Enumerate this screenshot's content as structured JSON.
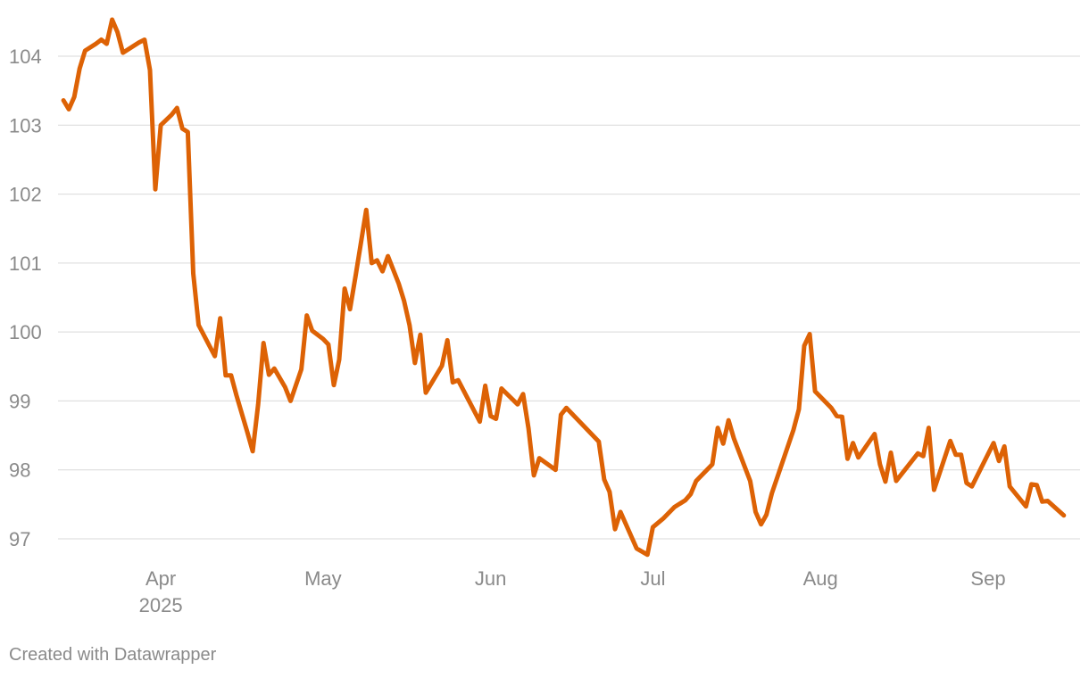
{
  "chart_data": {
    "type": "line",
    "title": "",
    "xlabel": "",
    "ylabel": "",
    "ylim": [
      96.7,
      104.6
    ],
    "xlim": [
      "2025-03-13",
      "2025-09-18"
    ],
    "grid": true,
    "y_ticks": [
      97,
      98,
      99,
      100,
      101,
      102,
      103,
      104
    ],
    "x_ticks": [
      {
        "date": "2025-04-01",
        "label": "Apr",
        "sublabel": "2025"
      },
      {
        "date": "2025-05-01",
        "label": "May"
      },
      {
        "date": "2025-06-01",
        "label": "Jun"
      },
      {
        "date": "2025-07-01",
        "label": "Jul"
      },
      {
        "date": "2025-08-01",
        "label": "Aug"
      },
      {
        "date": "2025-09-01",
        "label": "Sep"
      }
    ],
    "series": [
      {
        "color": "#dd6205",
        "points": [
          [
            "2025-03-14",
            103.36
          ],
          [
            "2025-03-15",
            103.23
          ],
          [
            "2025-03-16",
            103.41
          ],
          [
            "2025-03-17",
            103.82
          ],
          [
            "2025-03-18",
            104.08
          ],
          [
            "2025-03-20",
            104.18
          ],
          [
            "2025-03-21",
            104.24
          ],
          [
            "2025-03-22",
            104.18
          ],
          [
            "2025-03-23",
            104.53
          ],
          [
            "2025-03-24",
            104.35
          ],
          [
            "2025-03-25",
            104.05
          ],
          [
            "2025-03-27",
            104.15
          ],
          [
            "2025-03-28",
            104.2
          ],
          [
            "2025-03-29",
            104.24
          ],
          [
            "2025-03-30",
            103.8
          ],
          [
            "2025-03-31",
            102.07
          ],
          [
            "2025-04-01",
            103.0
          ],
          [
            "2025-04-03",
            103.15
          ],
          [
            "2025-04-04",
            103.25
          ],
          [
            "2025-04-05",
            102.95
          ],
          [
            "2025-04-06",
            102.9
          ],
          [
            "2025-04-07",
            100.85
          ],
          [
            "2025-04-08",
            100.1
          ],
          [
            "2025-04-10",
            99.8
          ],
          [
            "2025-04-11",
            99.65
          ],
          [
            "2025-04-12",
            100.2
          ],
          [
            "2025-04-13",
            99.37
          ],
          [
            "2025-04-14",
            99.37
          ],
          [
            "2025-04-15",
            99.08
          ],
          [
            "2025-04-17",
            98.55
          ],
          [
            "2025-04-18",
            98.27
          ],
          [
            "2025-04-19",
            98.95
          ],
          [
            "2025-04-20",
            99.84
          ],
          [
            "2025-04-21",
            99.38
          ],
          [
            "2025-04-22",
            99.47
          ],
          [
            "2025-04-24",
            99.2
          ],
          [
            "2025-04-25",
            99.0
          ],
          [
            "2025-04-27",
            99.46
          ],
          [
            "2025-04-28",
            100.24
          ],
          [
            "2025-04-29",
            100.02
          ],
          [
            "2025-05-01",
            99.9
          ],
          [
            "2025-05-02",
            99.82
          ],
          [
            "2025-05-03",
            99.23
          ],
          [
            "2025-05-04",
            99.6
          ],
          [
            "2025-05-05",
            100.63
          ],
          [
            "2025-05-06",
            100.33
          ],
          [
            "2025-05-07",
            100.8
          ],
          [
            "2025-05-09",
            101.77
          ],
          [
            "2025-05-10",
            101.0
          ],
          [
            "2025-05-11",
            101.04
          ],
          [
            "2025-05-12",
            100.88
          ],
          [
            "2025-05-13",
            101.1
          ],
          [
            "2025-05-15",
            100.7
          ],
          [
            "2025-05-16",
            100.45
          ],
          [
            "2025-05-17",
            100.1
          ],
          [
            "2025-05-18",
            99.55
          ],
          [
            "2025-05-19",
            99.96
          ],
          [
            "2025-05-20",
            99.12
          ],
          [
            "2025-05-23",
            99.51
          ],
          [
            "2025-05-24",
            99.88
          ],
          [
            "2025-05-25",
            99.27
          ],
          [
            "2025-05-26",
            99.3
          ],
          [
            "2025-05-30",
            98.7
          ],
          [
            "2025-05-31",
            99.22
          ],
          [
            "2025-06-01",
            98.78
          ],
          [
            "2025-06-02",
            98.74
          ],
          [
            "2025-06-03",
            99.18
          ],
          [
            "2025-06-06",
            98.95
          ],
          [
            "2025-06-07",
            99.1
          ],
          [
            "2025-06-08",
            98.6
          ],
          [
            "2025-06-09",
            97.92
          ],
          [
            "2025-06-10",
            98.17
          ],
          [
            "2025-06-13",
            98.0
          ],
          [
            "2025-06-14",
            98.8
          ],
          [
            "2025-06-15",
            98.9
          ],
          [
            "2025-06-21",
            98.41
          ],
          [
            "2025-06-22",
            97.86
          ],
          [
            "2025-06-23",
            97.68
          ],
          [
            "2025-06-24",
            97.14
          ],
          [
            "2025-06-25",
            97.39
          ],
          [
            "2025-06-28",
            96.86
          ],
          [
            "2025-06-30",
            96.77
          ],
          [
            "2025-07-01",
            97.17
          ],
          [
            "2025-07-03",
            97.3
          ],
          [
            "2025-07-05",
            97.46
          ],
          [
            "2025-07-07",
            97.56
          ],
          [
            "2025-07-08",
            97.65
          ],
          [
            "2025-07-09",
            97.84
          ],
          [
            "2025-07-12",
            98.08
          ],
          [
            "2025-07-13",
            98.61
          ],
          [
            "2025-07-14",
            98.38
          ],
          [
            "2025-07-15",
            98.72
          ],
          [
            "2025-07-16",
            98.45
          ],
          [
            "2025-07-19",
            97.84
          ],
          [
            "2025-07-20",
            97.39
          ],
          [
            "2025-07-21",
            97.21
          ],
          [
            "2025-07-22",
            97.35
          ],
          [
            "2025-07-23",
            97.66
          ],
          [
            "2025-07-27",
            98.58
          ],
          [
            "2025-07-28",
            98.88
          ],
          [
            "2025-07-29",
            99.8
          ],
          [
            "2025-07-30",
            99.97
          ],
          [
            "2025-07-31",
            99.14
          ],
          [
            "2025-08-03",
            98.9
          ],
          [
            "2025-08-04",
            98.78
          ],
          [
            "2025-08-05",
            98.77
          ],
          [
            "2025-08-06",
            98.16
          ],
          [
            "2025-08-07",
            98.39
          ],
          [
            "2025-08-08",
            98.18
          ],
          [
            "2025-08-11",
            98.52
          ],
          [
            "2025-08-12",
            98.08
          ],
          [
            "2025-08-13",
            97.83
          ],
          [
            "2025-08-14",
            98.25
          ],
          [
            "2025-08-15",
            97.84
          ],
          [
            "2025-08-19",
            98.24
          ],
          [
            "2025-08-20",
            98.2
          ],
          [
            "2025-08-21",
            98.61
          ],
          [
            "2025-08-22",
            97.71
          ],
          [
            "2025-08-25",
            98.42
          ],
          [
            "2025-08-26",
            98.22
          ],
          [
            "2025-08-27",
            98.22
          ],
          [
            "2025-08-28",
            97.81
          ],
          [
            "2025-08-29",
            97.76
          ],
          [
            "2025-09-02",
            98.39
          ],
          [
            "2025-09-03",
            98.13
          ],
          [
            "2025-09-04",
            98.34
          ],
          [
            "2025-09-05",
            97.76
          ],
          [
            "2025-09-08",
            97.47
          ],
          [
            "2025-09-09",
            97.79
          ],
          [
            "2025-09-10",
            97.78
          ],
          [
            "2025-09-11",
            97.54
          ],
          [
            "2025-09-12",
            97.55
          ],
          [
            "2025-09-15",
            97.34
          ]
        ]
      }
    ]
  },
  "footer": {
    "credit": "Created with Datawrapper"
  }
}
